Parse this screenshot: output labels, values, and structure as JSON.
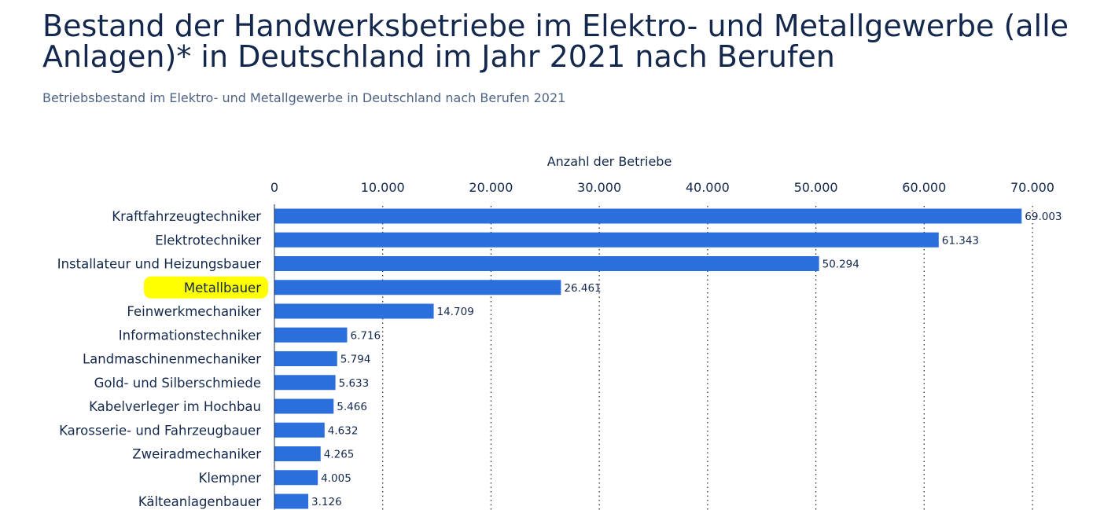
{
  "header": {
    "title": "Bestand der Handwerksbetriebe im Elektro- und Metallgewerbe (alle Anlagen)* in Deutschland im Jahr 2021 nach Berufen",
    "subtitle": "Betriebsbestand im Elektro- und Metallgewerbe in Deutschland nach Berufen 2021"
  },
  "chart_data": {
    "type": "bar",
    "orientation": "horizontal",
    "xlabel": "Anzahl der Betriebe",
    "xlim": [
      0,
      70000
    ],
    "ticks": [
      0,
      10000,
      20000,
      30000,
      40000,
      50000,
      60000,
      70000
    ],
    "tick_labels": [
      "0",
      "10.000",
      "20.000",
      "30.000",
      "40.000",
      "50.000",
      "60.000",
      "70.000"
    ],
    "grid": true,
    "categories": [
      "Kraftfahrzeugtechniker",
      "Elektrotechniker",
      "Installateur und Heizungsbauer",
      "Metallbauer",
      "Feinwerkmechaniker",
      "Informationstechniker",
      "Landmaschinenmechaniker",
      "Gold- und Silberschmiede",
      "Kabelverleger im Hochbau",
      "Karosserie- und Fahrzeugbauer",
      "Zweiradmechaniker",
      "Klempner",
      "Kälteanlagenbauer"
    ],
    "values": [
      69003,
      61343,
      50294,
      26461,
      14709,
      6716,
      5794,
      5633,
      5466,
      4632,
      4265,
      4005,
      3126
    ],
    "value_labels": [
      "69.003",
      "61.343",
      "50.294",
      "26.461",
      "14.709",
      "6.716",
      "5.794",
      "5.633",
      "5.466",
      "4.632",
      "4.265",
      "4.005",
      "3.126"
    ],
    "highlighted_category": "Metallbauer",
    "colors": {
      "bar": "#2a6fdb",
      "highlight": "#ffff00",
      "axis": "#13284c",
      "grid": "#1f1f1f",
      "text": "#13284c"
    }
  }
}
